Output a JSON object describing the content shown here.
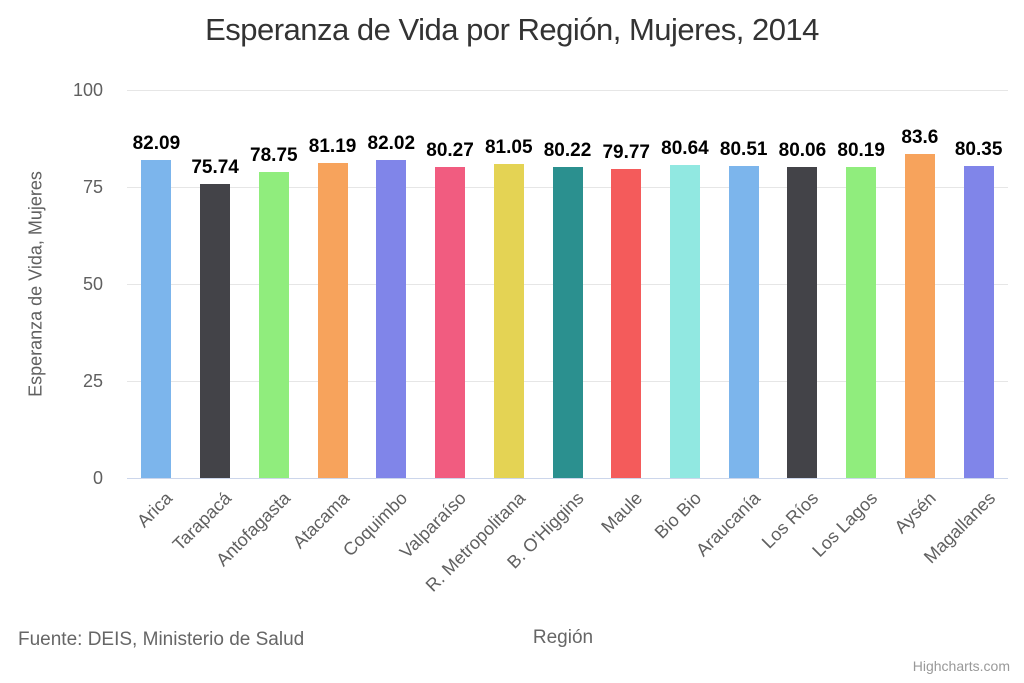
{
  "source_note": "Fuente: DEIS, Ministerio de Salud",
  "credits": "Highcharts.com",
  "colors": {
    "background": "#ffffff",
    "title_text": "#333333",
    "axis_text": "#606060",
    "grid_line": "#e6e6e6",
    "axis_line": "#ccd6eb",
    "data_label": "#000000",
    "source_text": "#666666",
    "credits_text": "#999999"
  },
  "chart_data": {
    "type": "bar",
    "title": "Esperanza de Vida por Región, Mujeres, 2014",
    "xlabel": "Región",
    "ylabel": "Esperanza de Vida, Mujeres",
    "categories": [
      "Arica",
      "Tarapacá",
      "Antofagasta",
      "Atacama",
      "Coquimbo",
      "Valparaíso",
      "R. Metropolitana",
      "B. O'Higgins",
      "Maule",
      "Bio Bio",
      "Araucanía",
      "Los Ríos",
      "Los Lagos",
      "Aysén",
      "Magallanes"
    ],
    "values": [
      82.09,
      75.74,
      78.75,
      81.19,
      82.02,
      80.27,
      81.05,
      80.22,
      79.77,
      80.64,
      80.51,
      80.06,
      80.19,
      83.6,
      80.35
    ],
    "value_labels": [
      "82.09",
      "75.74",
      "78.75",
      "81.19",
      "82.02",
      "80.27",
      "81.05",
      "80.22",
      "79.77",
      "80.64",
      "80.51",
      "80.06",
      "80.19",
      "83.6",
      "80.35"
    ],
    "ylim": [
      0,
      100
    ],
    "yticks": [
      0,
      25,
      50,
      75,
      100
    ],
    "grid": true,
    "legend": "none",
    "palette": [
      "#7cb5ec",
      "#434348",
      "#90ed7d",
      "#f7a35c",
      "#8085e9",
      "#f15c80",
      "#e4d354",
      "#2b908f",
      "#f45b5b",
      "#91e8e1"
    ],
    "bar_colors": [
      "#7cb5ec",
      "#434348",
      "#90ed7d",
      "#f7a35c",
      "#8085e9",
      "#f15c80",
      "#e4d354",
      "#2b908f",
      "#f45b5b",
      "#91e8e1",
      "#7cb5ec",
      "#434348",
      "#90ed7d",
      "#f7a35c",
      "#8085e9"
    ]
  }
}
